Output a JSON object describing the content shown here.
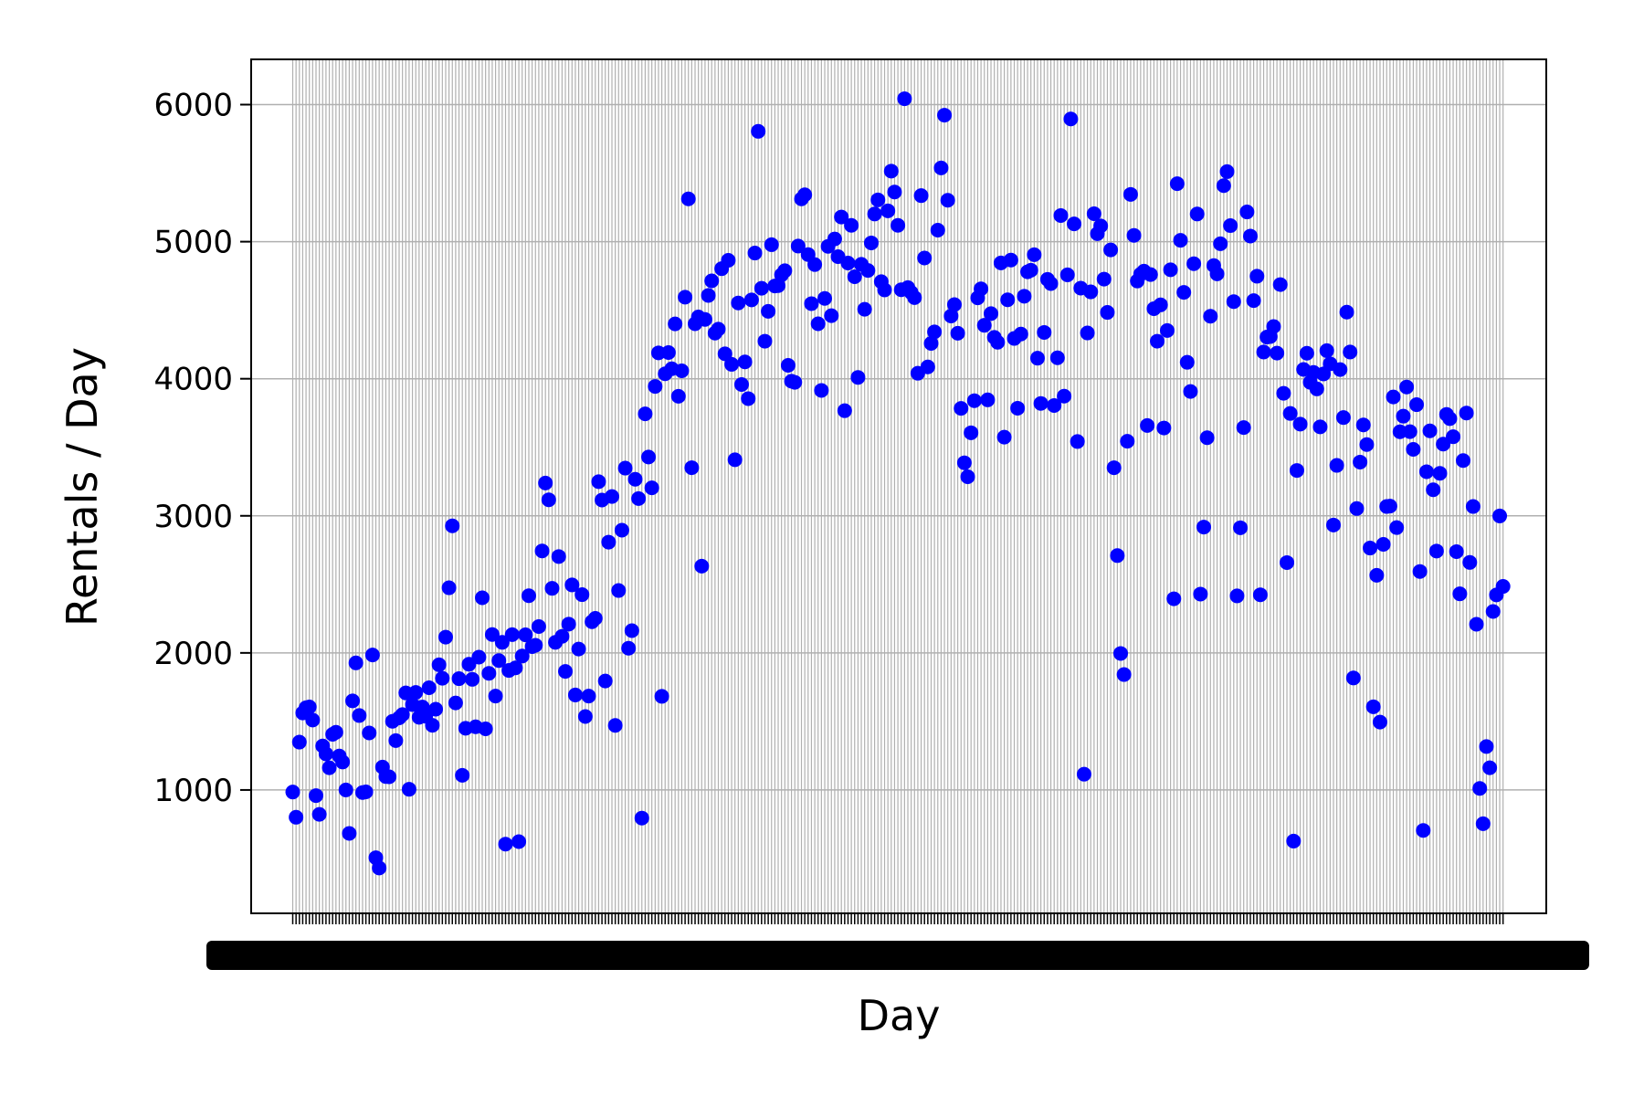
{
  "chart_data": {
    "type": "scatter",
    "title": "",
    "xlabel": "Day",
    "ylabel": "Rentals / Day",
    "xlim": [
      -12.5,
      377
    ],
    "ylim": [
      100,
      6330
    ],
    "y_ticks": [
      1000,
      2000,
      3000,
      4000,
      5000,
      6000
    ],
    "y_tick_labels": [
      "1000",
      "2000",
      "3000",
      "4000",
      "5000",
      "6000"
    ],
    "grid": "both",
    "legend": "none",
    "x_tick_labels": "illegible (one overlapping date label per day)",
    "colors": {
      "marker": "#0000ff",
      "grid": "#b0b0b0",
      "axes": "#000000"
    },
    "x": [
      0,
      1,
      2,
      3,
      4,
      5,
      6,
      7,
      8,
      9,
      10,
      11,
      12,
      13,
      14,
      15,
      16,
      17,
      18,
      19,
      20,
      21,
      22,
      23,
      24,
      25,
      26,
      27,
      28,
      29,
      30,
      31,
      32,
      33,
      34,
      35,
      36,
      37,
      38,
      39,
      40,
      41,
      42,
      43,
      44,
      45,
      46,
      47,
      48,
      49,
      50,
      51,
      52,
      53,
      54,
      55,
      56,
      57,
      58,
      59,
      60,
      61,
      62,
      63,
      64,
      65,
      66,
      67,
      68,
      69,
      70,
      71,
      72,
      73,
      74,
      75,
      76,
      77,
      78,
      79,
      80,
      81,
      82,
      83,
      84,
      85,
      86,
      87,
      88,
      89,
      90,
      91,
      92,
      93,
      94,
      95,
      96,
      97,
      98,
      99,
      100,
      101,
      102,
      103,
      104,
      105,
      106,
      107,
      108,
      109,
      110,
      111,
      112,
      113,
      114,
      115,
      116,
      117,
      118,
      119,
      120,
      121,
      122,
      123,
      124,
      125,
      126,
      127,
      128,
      129,
      130,
      131,
      132,
      133,
      134,
      135,
      136,
      137,
      138,
      139,
      140,
      141,
      142,
      143,
      144,
      145,
      146,
      147,
      148,
      149,
      150,
      151,
      152,
      153,
      154,
      155,
      156,
      157,
      158,
      159,
      160,
      161,
      162,
      163,
      164,
      165,
      166,
      167,
      168,
      169,
      170,
      171,
      172,
      173,
      174,
      175,
      176,
      177,
      178,
      179,
      180,
      181,
      182,
      183,
      184,
      185,
      186,
      187,
      188,
      189,
      190,
      191,
      192,
      193,
      194,
      195,
      196,
      197,
      198,
      199,
      200,
      201,
      202,
      203,
      204,
      205,
      206,
      207,
      208,
      209,
      210,
      211,
      212,
      213,
      214,
      215,
      216,
      217,
      218,
      219,
      220,
      221,
      222,
      223,
      224,
      225,
      226,
      227,
      228,
      229,
      230,
      231,
      232,
      233,
      234,
      235,
      236,
      237,
      238,
      239,
      240,
      241,
      242,
      243,
      244,
      245,
      246,
      247,
      248,
      249,
      250,
      251,
      252,
      253,
      254,
      255,
      256,
      257,
      258,
      259,
      260,
      261,
      262,
      263,
      264,
      265,
      266,
      267,
      268,
      269,
      270,
      271,
      272,
      273,
      274,
      275,
      276,
      277,
      278,
      279,
      280,
      281,
      282,
      283,
      284,
      285,
      286,
      287,
      288,
      289,
      290,
      291,
      292,
      293,
      294,
      295,
      296,
      297,
      298,
      299,
      300,
      301,
      302,
      303,
      304,
      305,
      306,
      307,
      308,
      309,
      310,
      311,
      312,
      313,
      314,
      315,
      316,
      317,
      318,
      319,
      320,
      321,
      322,
      323,
      324,
      325,
      326,
      327,
      328,
      329,
      330,
      331,
      332,
      333,
      334,
      335,
      336,
      337,
      338,
      339,
      340,
      341,
      342,
      343,
      344,
      345,
      346,
      347,
      348,
      349,
      350,
      351,
      352,
      353,
      354,
      355,
      356,
      357,
      358,
      359,
      360,
      361,
      362,
      363,
      364
    ],
    "y": [
      985,
      801,
      1349,
      1562,
      1600,
      1606,
      1510,
      959,
      822,
      1321,
      1263,
      1162,
      1406,
      1421,
      1248,
      1204,
      1000,
      683,
      1650,
      1927,
      1543,
      981,
      986,
      1416,
      1985,
      506,
      431,
      1167,
      1098,
      1096,
      1501,
      1360,
      1526,
      1550,
      1708,
      1005,
      1623,
      1712,
      1530,
      1605,
      1538,
      1746,
      1472,
      1589,
      1913,
      1815,
      2115,
      2475,
      2927,
      1635,
      1812,
      1107,
      1450,
      1917,
      1807,
      1461,
      1969,
      2402,
      1446,
      1851,
      2134,
      1685,
      1944,
      2077,
      605,
      1872,
      2133,
      1891,
      623,
      1977,
      2132,
      2417,
      2046,
      2056,
      2192,
      2744,
      3239,
      3117,
      2471,
      2077,
      2703,
      2121,
      1865,
      2210,
      2496,
      1693,
      2028,
      2425,
      1536,
      1685,
      2227,
      2252,
      3249,
      3115,
      1795,
      2808,
      3141,
      1471,
      2455,
      2895,
      3348,
      2034,
      2162,
      3267,
      3126,
      795,
      3744,
      3429,
      3204,
      3944,
      4189,
      1683,
      4036,
      4191,
      4073,
      4400,
      3872,
      4058,
      4595,
      5312,
      3351,
      4401,
      4451,
      2633,
      4433,
      4608,
      4714,
      4333,
      4362,
      4803,
      4182,
      4864,
      4105,
      3409,
      4553,
      3958,
      4123,
      3855,
      4575,
      4917,
      5805,
      4660,
      4274,
      4492,
      4978,
      4677,
      4679,
      4758,
      4788,
      4098,
      3982,
      3974,
      4968,
      5312,
      5342,
      4906,
      4548,
      4833,
      4401,
      3915,
      4586,
      4966,
      4460,
      5020,
      4891,
      5180,
      3767,
      4844,
      5119,
      4744,
      4010,
      4835,
      4507,
      4790,
      4991,
      5202,
      5305,
      4708,
      4648,
      5225,
      5515,
      5362,
      5119,
      4649,
      6043,
      4665,
      4629,
      4592,
      4040,
      5336,
      4881,
      4086,
      4258,
      4342,
      5084,
      5538,
      5923,
      5302,
      4458,
      4541,
      4332,
      3784,
      3387,
      3285,
      3606,
      3840,
      4590,
      4656,
      4390,
      3846,
      4475,
      4302,
      4266,
      4845,
      3574,
      4576,
      4866,
      4294,
      3785,
      4326,
      4602,
      4780,
      4792,
      4905,
      4150,
      3820,
      4338,
      4725,
      4694,
      3805,
      4153,
      5191,
      3873,
      4758,
      5895,
      5130,
      3542,
      4661,
      1115,
      4334,
      4634,
      5204,
      5058,
      5115,
      4727,
      4484,
      4940,
      3351,
      2710,
      1996,
      1842,
      3544,
      5345,
      5046,
      4713,
      4763,
      4785,
      3659,
      4760,
      4511,
      4274,
      4539,
      3641,
      4352,
      4795,
      2395,
      5423,
      5010,
      4630,
      4120,
      3907,
      4839,
      5202,
      2429,
      2918,
      3570,
      4456,
      4826,
      4765,
      4985,
      5409,
      5511,
      5117,
      4563,
      2416,
      2913,
      3644,
      5217,
      5041,
      4570,
      4748,
      2424,
      4195,
      4304,
      4308,
      4381,
      4187,
      4687,
      3894,
      2659,
      3747,
      627,
      3331,
      3669,
      4068,
      4186,
      3974,
      4046,
      3926,
      3649,
      4035,
      4205,
      4109,
      2933,
      3368,
      4067,
      3717,
      4486,
      4195,
      1817,
      3053,
      3392,
      3663,
      3520,
      2765,
      1607,
      2566,
      1495,
      2792,
      3068,
      3071,
      3867,
      2914,
      3613,
      3727,
      3940,
      3614,
      3485,
      3811,
      2594,
      705,
      3322,
      3620,
      3190,
      2743,
      3310,
      3523,
      3740,
      3709,
      3577,
      2739,
      2431,
      3403,
      3750,
      2660,
      3068,
      2209,
      1011,
      754,
      1317,
      1162,
      2302,
      2423,
      2999,
      2485
    ]
  }
}
